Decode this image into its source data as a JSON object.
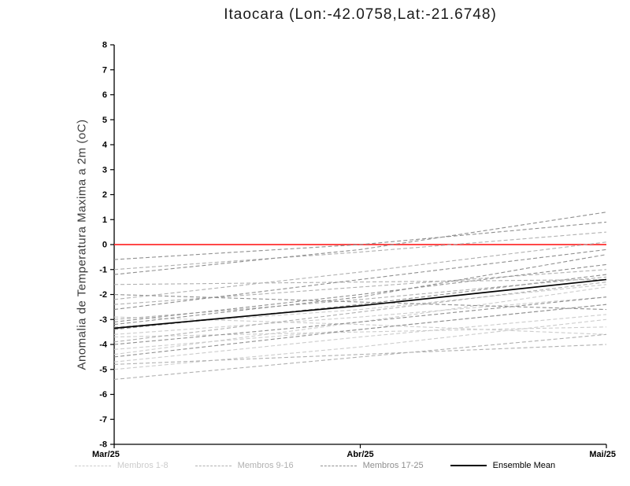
{
  "chart_data": {
    "type": "line",
    "title": "Itaocara (Lon:-42.0758,Lat:-21.6748)",
    "ylabel": "Anomalia de Temperatura Maxima a 2m (oC)",
    "xlabel": "",
    "x_categories": [
      "Mar/25",
      "Abr/25",
      "Mai/25"
    ],
    "ylim": [
      -8,
      8
    ],
    "ytick_step": 1,
    "grid": false,
    "legend_position": "bottom",
    "zero_line": {
      "value": 0,
      "color": "#ff2e2e"
    },
    "axis_color": "#000000",
    "groups": [
      {
        "name": "Membros 1-8",
        "color": "#cccccc",
        "dash": true,
        "series": [
          [
            -3.3,
            -2.6,
            -1.6
          ],
          [
            -3.6,
            -2.9,
            -2.1
          ],
          [
            -4.2,
            -3.4,
            -2.4
          ],
          [
            -4.7,
            -3.7,
            -2.8
          ],
          [
            -2.9,
            -3.2,
            -3.6
          ],
          [
            -3.7,
            -3.5,
            -3.3
          ],
          [
            -5.0,
            -4.1,
            -3.0
          ],
          [
            -4.4,
            -3.1,
            -1.7
          ]
        ]
      },
      {
        "name": "Membros 9-16",
        "color": "#b0b0b0",
        "dash": true,
        "series": [
          [
            -1.0,
            -0.3,
            0.5
          ],
          [
            -1.6,
            -1.5,
            -1.4
          ],
          [
            -2.4,
            -1.7,
            -1.0
          ],
          [
            -3.0,
            -2.2,
            -1.3
          ],
          [
            -4.8,
            -4.4,
            -4.0
          ],
          [
            -5.4,
            -4.5,
            -3.6
          ],
          [
            -2.2,
            -1.1,
            0.1
          ],
          [
            -3.9,
            -2.7,
            -1.5
          ]
        ]
      },
      {
        "name": "Membros 17-25",
        "color": "#8f8f8f",
        "dash": true,
        "series": [
          [
            -0.6,
            0.0,
            0.9
          ],
          [
            -1.2,
            -0.2,
            1.3
          ],
          [
            -2.6,
            -1.4,
            -0.2
          ],
          [
            -3.1,
            -2.0,
            -0.8
          ],
          [
            -3.4,
            -2.4,
            -1.2
          ],
          [
            -4.0,
            -3.1,
            -2.1
          ],
          [
            -4.5,
            -3.4,
            -2.4
          ],
          [
            -2.0,
            -2.3,
            -2.6
          ],
          [
            -3.2,
            -2.1,
            -0.4
          ]
        ]
      },
      {
        "name": "Ensemble Mean",
        "color": "#000000",
        "dash": false,
        "series": [
          [
            -3.35,
            -2.45,
            -1.4
          ]
        ]
      }
    ]
  }
}
